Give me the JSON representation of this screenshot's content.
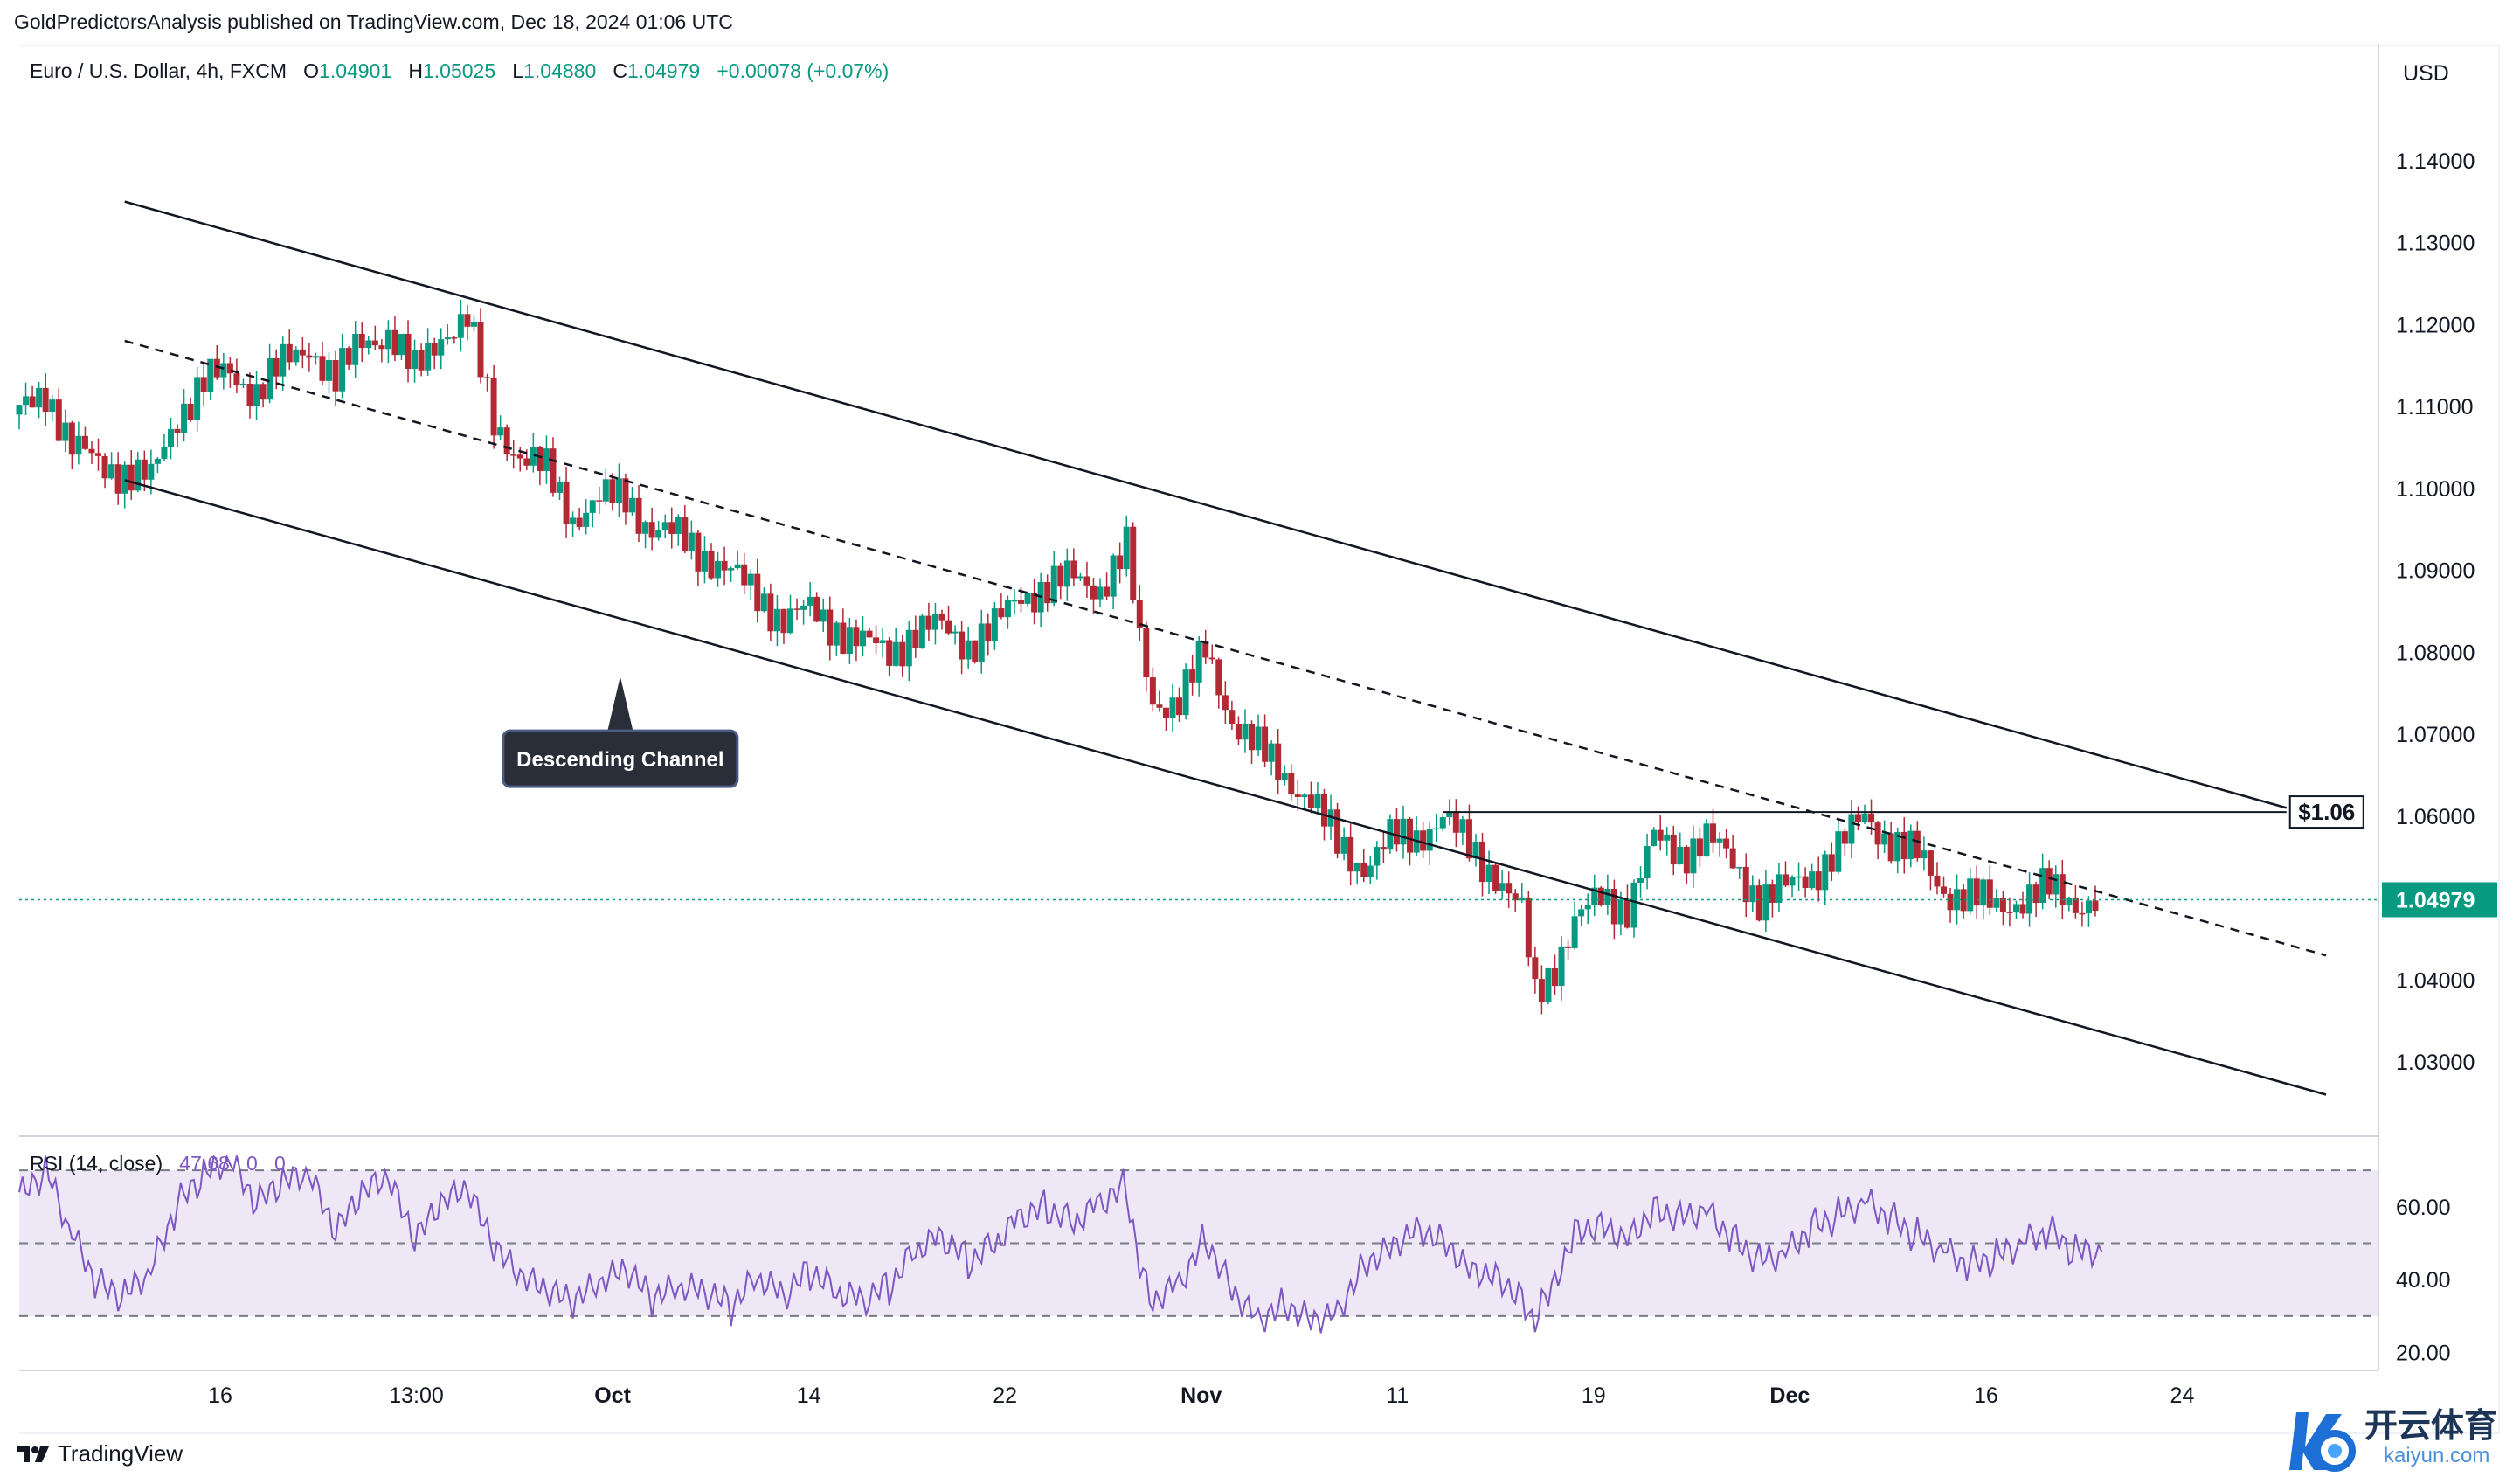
{
  "header": {
    "publisher": "GoldPredictorsAnalysis published on TradingView.com, Dec 18, 2024 01:06 UTC"
  },
  "legend": {
    "symbol": "Euro / U.S. Dollar, 4h, FXCM",
    "o_label": "O",
    "o": "1.04901",
    "h_label": "H",
    "h": "1.05025",
    "l_label": "L",
    "l": "1.04880",
    "c_label": "C",
    "c": "1.04979",
    "change": "+0.00078 (+0.07%)"
  },
  "rsi_legend": {
    "label": "RSI (14, close)",
    "value": "47.68",
    "extra1": "0",
    "extra2": "0"
  },
  "currency": "USD",
  "brand": "TradingView",
  "watermark": {
    "cn": "开云体育",
    "en": "kaiyun.com"
  },
  "colors": {
    "up": "#089981",
    "down": "#b22833",
    "rsi_line": "#7e57c2",
    "rsi_band": "#ede7f6",
    "price_badge": "#089981"
  },
  "chart_data": [
    {
      "type": "candlestick",
      "title": "Euro / U.S. Dollar, 4h, FXCM",
      "ylim": [
        1.022,
        1.15
      ],
      "y_ticks": [
        "1.14000",
        "1.13000",
        "1.12000",
        "1.11000",
        "1.10000",
        "1.09000",
        "1.08000",
        "1.07000",
        "1.06000",
        "1.04000",
        "1.03000"
      ],
      "x_ticks": [
        "16",
        "13:00",
        "Oct",
        "14",
        "22",
        "Nov",
        "11",
        "19",
        "Dec",
        "16",
        "24"
      ],
      "last_price": "1.04979",
      "close_path": [
        [
          0,
          1.109
        ],
        [
          2,
          1.112
        ],
        [
          4,
          1.105
        ],
        [
          6,
          1.103
        ],
        [
          8,
          1.102
        ],
        [
          10,
          1.101
        ],
        [
          12,
          1.109
        ],
        [
          14,
          1.113
        ],
        [
          16,
          1.114
        ],
        [
          18,
          1.112
        ],
        [
          20,
          1.115
        ],
        [
          22,
          1.1175
        ],
        [
          24,
          1.113
        ],
        [
          26,
          1.118
        ],
        [
          28,
          1.119
        ],
        [
          30,
          1.114
        ],
        [
          32,
          1.119
        ],
        [
          34,
          1.1205
        ],
        [
          36,
          1.108
        ],
        [
          38,
          1.104
        ],
        [
          40,
          1.102
        ],
        [
          42,
          1.0965
        ],
        [
          44,
          1.0985
        ],
        [
          46,
          1.099
        ],
        [
          48,
          1.095
        ],
        [
          50,
          1.094
        ],
        [
          52,
          1.092
        ],
        [
          54,
          1.0895
        ],
        [
          56,
          1.087
        ],
        [
          58,
          1.084
        ],
        [
          60,
          1.085
        ],
        [
          62,
          1.083
        ],
        [
          64,
          1.081
        ],
        [
          66,
          1.08
        ],
        [
          68,
          1.0825
        ],
        [
          70,
          1.083
        ],
        [
          72,
          1.081
        ],
        [
          74,
          1.083
        ],
        [
          76,
          1.087
        ],
        [
          78,
          1.088
        ],
        [
          80,
          1.089
        ],
        [
          82,
          1.088
        ],
        [
          84,
          1.0925
        ],
        [
          85,
          1.081
        ],
        [
          86,
          1.074
        ],
        [
          88,
          1.074
        ],
        [
          90,
          1.08
        ],
        [
          92,
          1.072
        ],
        [
          94,
          1.068
        ],
        [
          96,
          1.065
        ],
        [
          98,
          1.062
        ],
        [
          100,
          1.0565
        ],
        [
          102,
          1.054
        ],
        [
          104,
          1.057
        ],
        [
          106,
          1.0575
        ],
        [
          108,
          1.06
        ],
        [
          110,
          1.056
        ],
        [
          112,
          1.053
        ],
        [
          114,
          1.048
        ],
        [
          115,
          1.038
        ],
        [
          116,
          1.0405
        ],
        [
          118,
          1.047
        ],
        [
          120,
          1.05
        ],
        [
          122,
          1.049
        ],
        [
          124,
          1.057
        ],
        [
          126,
          1.0555
        ],
        [
          128,
          1.0575
        ],
        [
          130,
          1.054
        ],
        [
          132,
          1.05
        ],
        [
          134,
          1.051
        ],
        [
          136,
          1.053
        ],
        [
          138,
          1.056
        ],
        [
          140,
          1.06
        ],
        [
          142,
          1.057
        ],
        [
          144,
          1.055
        ],
        [
          146,
          1.051
        ],
        [
          148,
          1.05
        ],
        [
          150,
          1.049
        ],
        [
          152,
          1.05
        ],
        [
          154,
          1.051
        ],
        [
          156,
          1.0495
        ],
        [
          158,
          1.0498
        ]
      ],
      "x_max": 175,
      "annotations": [
        {
          "type": "label",
          "text": "Descending Channel"
        },
        {
          "type": "level",
          "text": "$1.06",
          "y": 1.0605
        }
      ],
      "channel": {
        "upper": [
          [
            8,
            1.135
          ],
          [
            172,
            1.061
          ]
        ],
        "lower": [
          [
            8,
            1.101
          ],
          [
            175,
            1.026
          ]
        ],
        "mid": [
          [
            8,
            1.118
          ],
          [
            175,
            1.043
          ]
        ]
      }
    },
    {
      "type": "line",
      "title": "RSI (14, close)",
      "ylim": [
        17,
        77
      ],
      "y_ticks": [
        "60.00",
        "40.00",
        "20.00"
      ],
      "bands": [
        30,
        50,
        70
      ],
      "series": [
        {
          "name": "RSI (14, close)",
          "path": [
            [
              0,
              62
            ],
            [
              2,
              70
            ],
            [
              4,
              52
            ],
            [
              6,
              38
            ],
            [
              8,
              35
            ],
            [
              10,
              42
            ],
            [
              12,
              60
            ],
            [
              14,
              68
            ],
            [
              16,
              72
            ],
            [
              18,
              60
            ],
            [
              20,
              66
            ],
            [
              22,
              68
            ],
            [
              24,
              52
            ],
            [
              26,
              63
            ],
            [
              28,
              67
            ],
            [
              30,
              50
            ],
            [
              32,
              60
            ],
            [
              34,
              64
            ],
            [
              36,
              48
            ],
            [
              38,
              40
            ],
            [
              40,
              36
            ],
            [
              42,
              33
            ],
            [
              44,
              38
            ],
            [
              46,
              42
            ],
            [
              48,
              34
            ],
            [
              50,
              37
            ],
            [
              52,
              36
            ],
            [
              54,
              32
            ],
            [
              56,
              40
            ],
            [
              58,
              35
            ],
            [
              60,
              42
            ],
            [
              62,
              36
            ],
            [
              64,
              34
            ],
            [
              66,
              38
            ],
            [
              68,
              48
            ],
            [
              70,
              52
            ],
            [
              72,
              45
            ],
            [
              74,
              50
            ],
            [
              76,
              58
            ],
            [
              78,
              60
            ],
            [
              80,
              56
            ],
            [
              82,
              62
            ],
            [
              84,
              66
            ],
            [
              85,
              42
            ],
            [
              86,
              35
            ],
            [
              88,
              40
            ],
            [
              90,
              52
            ],
            [
              92,
              38
            ],
            [
              94,
              30
            ],
            [
              96,
              34
            ],
            [
              98,
              30
            ],
            [
              100,
              32
            ],
            [
              102,
              45
            ],
            [
              104,
              50
            ],
            [
              106,
              55
            ],
            [
              108,
              52
            ],
            [
              110,
              44
            ],
            [
              112,
              42
            ],
            [
              114,
              36
            ],
            [
              115,
              28
            ],
            [
              116,
              36
            ],
            [
              118,
              54
            ],
            [
              120,
              56
            ],
            [
              122,
              52
            ],
            [
              124,
              60
            ],
            [
              126,
              58
            ],
            [
              128,
              60
            ],
            [
              130,
              52
            ],
            [
              132,
              46
            ],
            [
              134,
              48
            ],
            [
              136,
              55
            ],
            [
              138,
              58
            ],
            [
              140,
              62
            ],
            [
              142,
              57
            ],
            [
              144,
              52
            ],
            [
              146,
              48
            ],
            [
              148,
              44
            ],
            [
              150,
              46
            ],
            [
              152,
              50
            ],
            [
              154,
              53
            ],
            [
              156,
              47
            ],
            [
              158,
              47.68
            ]
          ]
        }
      ],
      "last_value": "47.68"
    }
  ]
}
